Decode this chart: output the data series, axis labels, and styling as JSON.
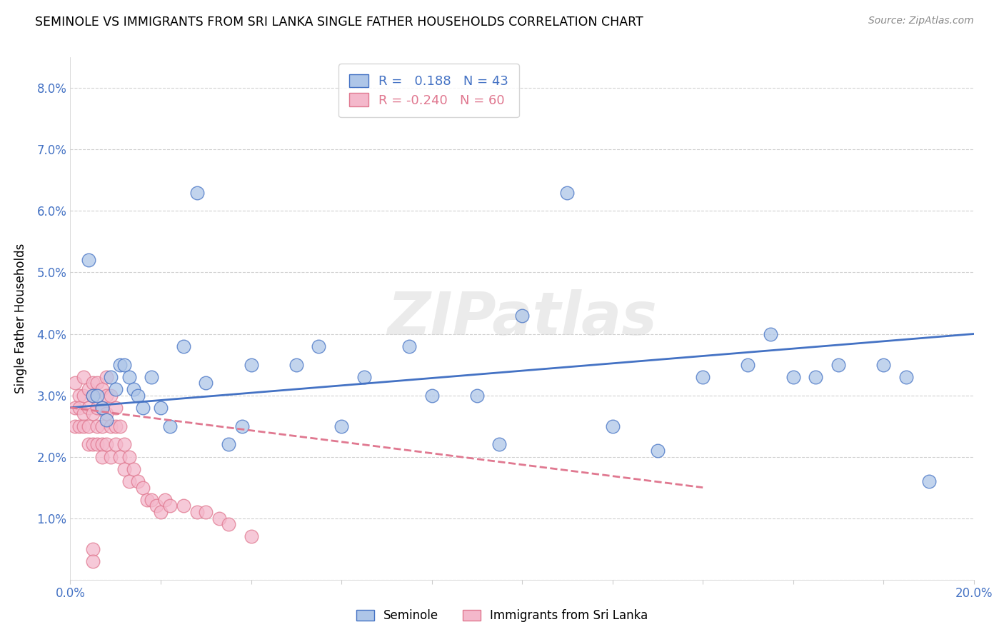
{
  "title": "SEMINOLE VS IMMIGRANTS FROM SRI LANKA SINGLE FATHER HOUSEHOLDS CORRELATION CHART",
  "source": "Source: ZipAtlas.com",
  "ylabel": "Single Father Households",
  "xlim": [
    0.0,
    0.2
  ],
  "ylim": [
    0.0,
    0.085
  ],
  "xticks": [
    0.0,
    0.02,
    0.04,
    0.06,
    0.08,
    0.1,
    0.12,
    0.14,
    0.16,
    0.18,
    0.2
  ],
  "yticks": [
    0.0,
    0.01,
    0.02,
    0.03,
    0.04,
    0.05,
    0.06,
    0.07,
    0.08
  ],
  "ytick_labels": [
    "",
    "1.0%",
    "2.0%",
    "3.0%",
    "4.0%",
    "5.0%",
    "6.0%",
    "7.0%",
    "8.0%"
  ],
  "xtick_labels": [
    "0.0%",
    "",
    "",
    "",
    "",
    "",
    "",
    "",
    "",
    "",
    "20.0%"
  ],
  "blue_R": 0.188,
  "blue_N": 43,
  "pink_R": -0.24,
  "pink_N": 60,
  "blue_color": "#aec6e8",
  "pink_color": "#f4b8cb",
  "blue_line_color": "#4472c4",
  "pink_line_color": "#e07890",
  "watermark": "ZIPatlas",
  "blue_scatter_x": [
    0.004,
    0.005,
    0.006,
    0.007,
    0.008,
    0.009,
    0.01,
    0.011,
    0.012,
    0.013,
    0.014,
    0.015,
    0.016,
    0.018,
    0.02,
    0.022,
    0.025,
    0.028,
    0.03,
    0.035,
    0.038,
    0.04,
    0.05,
    0.055,
    0.06,
    0.065,
    0.075,
    0.08,
    0.09,
    0.095,
    0.1,
    0.11,
    0.12,
    0.13,
    0.14,
    0.15,
    0.155,
    0.16,
    0.165,
    0.17,
    0.18,
    0.185,
    0.19
  ],
  "blue_scatter_y": [
    0.052,
    0.03,
    0.03,
    0.028,
    0.026,
    0.033,
    0.031,
    0.035,
    0.035,
    0.033,
    0.031,
    0.03,
    0.028,
    0.033,
    0.028,
    0.025,
    0.038,
    0.063,
    0.032,
    0.022,
    0.025,
    0.035,
    0.035,
    0.038,
    0.025,
    0.033,
    0.038,
    0.03,
    0.03,
    0.022,
    0.043,
    0.063,
    0.025,
    0.021,
    0.033,
    0.035,
    0.04,
    0.033,
    0.033,
    0.035,
    0.035,
    0.033,
    0.016
  ],
  "pink_scatter_x": [
    0.001,
    0.001,
    0.001,
    0.002,
    0.002,
    0.002,
    0.003,
    0.003,
    0.003,
    0.003,
    0.004,
    0.004,
    0.004,
    0.004,
    0.005,
    0.005,
    0.005,
    0.005,
    0.006,
    0.006,
    0.006,
    0.006,
    0.007,
    0.007,
    0.007,
    0.007,
    0.007,
    0.008,
    0.008,
    0.008,
    0.008,
    0.009,
    0.009,
    0.009,
    0.01,
    0.01,
    0.01,
    0.011,
    0.011,
    0.012,
    0.012,
    0.013,
    0.013,
    0.014,
    0.015,
    0.016,
    0.017,
    0.018,
    0.019,
    0.02,
    0.021,
    0.022,
    0.025,
    0.028,
    0.03,
    0.033,
    0.035,
    0.04,
    0.005,
    0.005
  ],
  "pink_scatter_y": [
    0.032,
    0.028,
    0.025,
    0.03,
    0.028,
    0.025,
    0.033,
    0.03,
    0.027,
    0.025,
    0.031,
    0.028,
    0.025,
    0.022,
    0.032,
    0.03,
    0.027,
    0.022,
    0.032,
    0.028,
    0.025,
    0.022,
    0.031,
    0.028,
    0.025,
    0.022,
    0.02,
    0.033,
    0.03,
    0.027,
    0.022,
    0.03,
    0.025,
    0.02,
    0.028,
    0.025,
    0.022,
    0.025,
    0.02,
    0.022,
    0.018,
    0.02,
    0.016,
    0.018,
    0.016,
    0.015,
    0.013,
    0.013,
    0.012,
    0.011,
    0.013,
    0.012,
    0.012,
    0.011,
    0.011,
    0.01,
    0.009,
    0.007,
    0.005,
    0.003
  ],
  "blue_line_x": [
    0.0,
    0.2
  ],
  "blue_line_y": [
    0.028,
    0.04
  ],
  "pink_line_x": [
    0.0,
    0.14
  ],
  "pink_line_y": [
    0.028,
    0.015
  ]
}
